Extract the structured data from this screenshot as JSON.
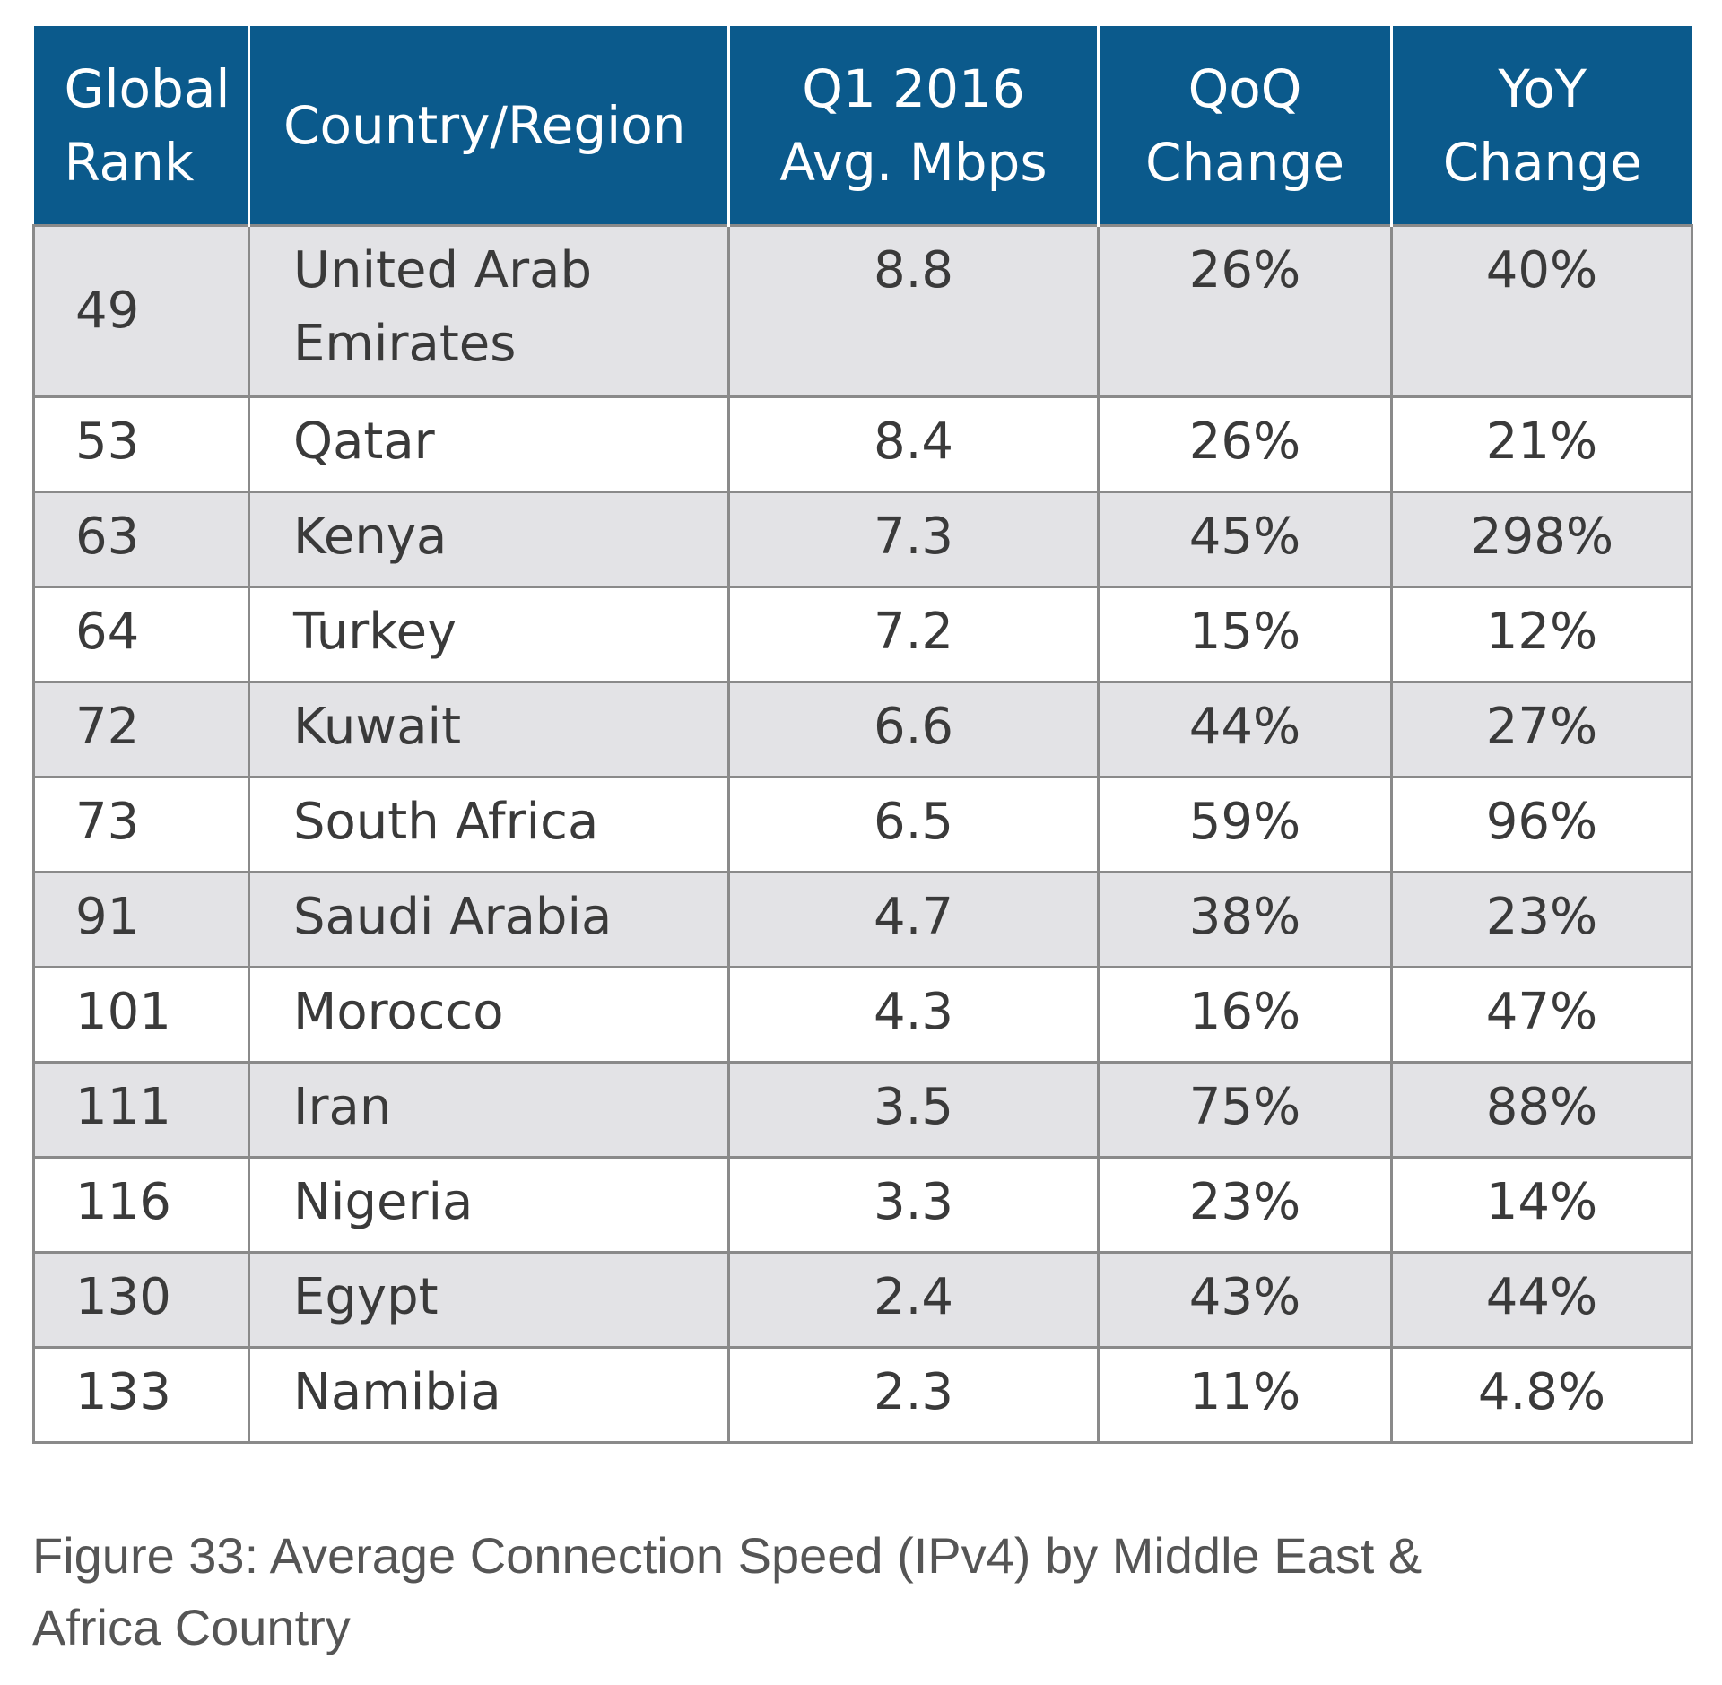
{
  "chart_data": {
    "type": "table",
    "columns": [
      [
        "Global",
        "Rank"
      ],
      [
        "Country/Region"
      ],
      [
        "Q1 2016",
        "Avg. Mbps"
      ],
      [
        "QoQ",
        "Change"
      ],
      [
        "YoY",
        "Change"
      ]
    ],
    "rows": [
      {
        "rank": "49",
        "country": [
          "United Arab",
          "Emirates"
        ],
        "mbps": "8.8",
        "qoq": "26%",
        "yoy": "40%"
      },
      {
        "rank": "53",
        "country": [
          "Qatar"
        ],
        "mbps": "8.4",
        "qoq": "26%",
        "yoy": "21%"
      },
      {
        "rank": "63",
        "country": [
          "Kenya"
        ],
        "mbps": "7.3",
        "qoq": "45%",
        "yoy": "298%"
      },
      {
        "rank": "64",
        "country": [
          "Turkey"
        ],
        "mbps": "7.2",
        "qoq": "15%",
        "yoy": "12%"
      },
      {
        "rank": "72",
        "country": [
          "Kuwait"
        ],
        "mbps": "6.6",
        "qoq": "44%",
        "yoy": "27%"
      },
      {
        "rank": "73",
        "country": [
          "South Africa"
        ],
        "mbps": "6.5",
        "qoq": "59%",
        "yoy": "96%"
      },
      {
        "rank": "91",
        "country": [
          "Saudi Arabia"
        ],
        "mbps": "4.7",
        "qoq": "38%",
        "yoy": "23%"
      },
      {
        "rank": "101",
        "country": [
          "Morocco"
        ],
        "mbps": "4.3",
        "qoq": "16%",
        "yoy": "47%"
      },
      {
        "rank": "111",
        "country": [
          "Iran"
        ],
        "mbps": "3.5",
        "qoq": "75%",
        "yoy": "88%"
      },
      {
        "rank": "116",
        "country": [
          "Nigeria"
        ],
        "mbps": "3.3",
        "qoq": "23%",
        "yoy": "14%"
      },
      {
        "rank": "130",
        "country": [
          "Egypt"
        ],
        "mbps": "2.4",
        "qoq": "43%",
        "yoy": "44%"
      },
      {
        "rank": "133",
        "country": [
          "Namibia"
        ],
        "mbps": "2.3",
        "qoq": "11%",
        "yoy": "4.8%"
      }
    ],
    "caption": [
      "Figure 33: Average Connection Speed (IPv4) by Middle East &",
      "Africa Country"
    ]
  },
  "colors": {
    "header_background": "#0b5a8c",
    "header_text": "#ffffff",
    "shaded_row": "#e3e3e6",
    "border": "#8a8a8a"
  }
}
